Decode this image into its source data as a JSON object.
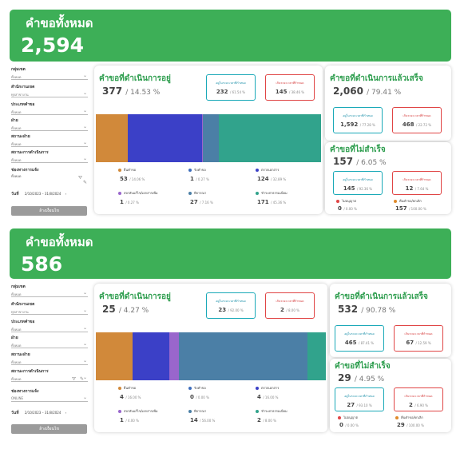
{
  "dashboards": [
    {
      "total_title": "คำขอทั้งหมด",
      "total_value": "2,594",
      "filters": [
        {
          "label": "กลุ่มเขต",
          "value": "ทั้งหมด"
        },
        {
          "label": "สำนักงานเขต",
          "value": "ทุกสาขางาน"
        },
        {
          "label": "ประเภทคำขอ",
          "value": "ทั้งหมด"
        },
        {
          "label": "ฝ่าย",
          "value": "ทั้งหมด"
        },
        {
          "label": "สถานะฝ่าย",
          "value": "ทั้งหมด"
        },
        {
          "label": "สถานะการดำเนินการ",
          "value": "ทั้งหมด"
        },
        {
          "label": "ช่องทางการแจ้ง",
          "value": "ทั้งหมด"
        }
      ],
      "date_label": "วันที่",
      "date_from": "2/10/2023",
      "date_to": "31/8/2024",
      "compare_button": "ล้างเงื่อนไข",
      "in_progress": {
        "title": "คำขอที่ดำเนินการอยู่",
        "value": "377",
        "pct": "/ 14.53 %",
        "within": {
          "label": "อยู่ในระยะเวลาที่กำหนด",
          "value": "232",
          "pct": "/ 61.54 %"
        },
        "over": {
          "label": "เกินระยะเวลาที่กำหนด",
          "value": "145",
          "pct": "/ 38.46 %"
        },
        "segments": [
          {
            "name": "ยื่นคำขอ",
            "value": "53",
            "pct": "/ 14.06 %",
            "fraction": 0.1406,
            "color": "#d1893a"
          },
          {
            "name": "รับคำขอ",
            "value": "1",
            "pct": "/ 0.27 %",
            "fraction": 0.0027,
            "color": "#3d6dbb"
          },
          {
            "name": "ตรวจเอกสาร",
            "value": "124",
            "pct": "/ 32.89 %",
            "fraction": 0.3289,
            "color": "#3b40c7"
          },
          {
            "name": "ส่งกลับแก้ไข/เอกสารเพิ่ม",
            "value": "1",
            "pct": "/ 0.27 %",
            "fraction": 0.0027,
            "color": "#9966cc"
          },
          {
            "name": "พิจารณา",
            "value": "27",
            "pct": "/ 7.16 %",
            "fraction": 0.0716,
            "color": "#4b7fa6"
          },
          {
            "name": "ชำระค่าธรรมเนียม",
            "value": "171",
            "pct": "/ 45.36 %",
            "fraction": 0.4536,
            "color": "#31a38c"
          }
        ]
      },
      "done": {
        "title": "คำขอที่ดำเนินการแล้วเสร็จ",
        "value": "2,060",
        "pct": "/ 79.41 %",
        "within": {
          "label": "อยู่ในระยะเวลาที่กำหนด",
          "value": "1,592",
          "pct": "/ 77.28 %"
        },
        "over": {
          "label": "เกินระยะเวลาที่กำหนด",
          "value": "468",
          "pct": "/ 22.72 %"
        }
      },
      "failed": {
        "title": "คำขอที่ไม่สำเร็จ",
        "value": "157",
        "pct": "/ 6.05 %",
        "within": {
          "label": "อยู่ในระยะเวลาที่กำหนด",
          "value": "145",
          "pct": "/ 92.36 %"
        },
        "over": {
          "label": "เกินระยะเวลาที่กำหนด",
          "value": "12",
          "pct": "/ 7.64 %"
        },
        "reasons": [
          {
            "name": "ไม่อนุญาต",
            "value": "0",
            "pct": "/ 0.00 %",
            "color": "#e04545"
          },
          {
            "name": "คืนคำขอ/ยกเลิก",
            "value": "157",
            "pct": "/ 100.00 %",
            "color": "#e08a2a"
          }
        ]
      }
    },
    {
      "total_title": "คำขอทั้งหมด",
      "total_value": "586",
      "filters": [
        {
          "label": "กลุ่มเขต",
          "value": "ทั้งหมด"
        },
        {
          "label": "สำนักงานเขต",
          "value": "ทุกสาขางาน"
        },
        {
          "label": "ประเภทคำขอ",
          "value": "ทั้งหมด"
        },
        {
          "label": "ฝ่าย",
          "value": "ทั้งหมด"
        },
        {
          "label": "สถานะฝ่าย",
          "value": "ทั้งหมด"
        },
        {
          "label": "สถานะการดำเนินการ",
          "value": "ทั้งหมด"
        },
        {
          "label": "ช่องทางการแจ้ง",
          "value": "ONLINE"
        }
      ],
      "date_label": "วันที่",
      "date_from": "2/10/2023",
      "date_to": "31/8/2024",
      "compare_button": "ล้างเงื่อนไข",
      "in_progress": {
        "title": "คำขอที่ดำเนินการอยู่",
        "value": "25",
        "pct": "/ 4.27 %",
        "within": {
          "label": "อยู่ในระยะเวลาที่กำหนด",
          "value": "23",
          "pct": "/ 92.00 %"
        },
        "over": {
          "label": "เกินระยะเวลาที่กำหนด",
          "value": "2",
          "pct": "/ 8.00 %"
        },
        "segments": [
          {
            "name": "ยื่นคำขอ",
            "value": "4",
            "pct": "/ 16.00 %",
            "fraction": 0.16,
            "color": "#d1893a"
          },
          {
            "name": "รับคำขอ",
            "value": "0",
            "pct": "/ 0.00 %",
            "fraction": 0.0,
            "color": "#3d6dbb"
          },
          {
            "name": "ตรวจเอกสาร",
            "value": "4",
            "pct": "/ 16.00 %",
            "fraction": 0.16,
            "color": "#3b40c7"
          },
          {
            "name": "ส่งกลับแก้ไข/เอกสารเพิ่ม",
            "value": "1",
            "pct": "/ 4.00 %",
            "fraction": 0.04,
            "color": "#9966cc"
          },
          {
            "name": "พิจารณา",
            "value": "14",
            "pct": "/ 56.00 %",
            "fraction": 0.56,
            "color": "#4b7fa6"
          },
          {
            "name": "ชำระค่าธรรมเนียม",
            "value": "2",
            "pct": "/ 8.00 %",
            "fraction": 0.08,
            "color": "#31a38c"
          }
        ]
      },
      "done": {
        "title": "คำขอที่ดำเนินการแล้วเสร็จ",
        "value": "532",
        "pct": "/ 90.78 %",
        "within": {
          "label": "อยู่ในระยะเวลาที่กำหนด",
          "value": "465",
          "pct": "/ 87.41 %"
        },
        "over": {
          "label": "เกินระยะเวลาที่กำหนด",
          "value": "67",
          "pct": "/ 12.59 %"
        }
      },
      "failed": {
        "title": "คำขอที่ไม่สำเร็จ",
        "value": "29",
        "pct": "/ 4.95 %",
        "within": {
          "label": "อยู่ในระยะเวลาที่กำหนด",
          "value": "27",
          "pct": "/ 93.10 %"
        },
        "over": {
          "label": "เกินระยะเวลาที่กำหนด",
          "value": "2",
          "pct": "/ 6.90 %"
        },
        "reasons": [
          {
            "name": "ไม่อนุญาต",
            "value": "0",
            "pct": "/ 0.00 %",
            "color": "#e04545"
          },
          {
            "name": "คืนคำขอ/ยกเลิก",
            "value": "29",
            "pct": "/ 100.00 %",
            "color": "#e08a2a"
          }
        ]
      }
    }
  ]
}
